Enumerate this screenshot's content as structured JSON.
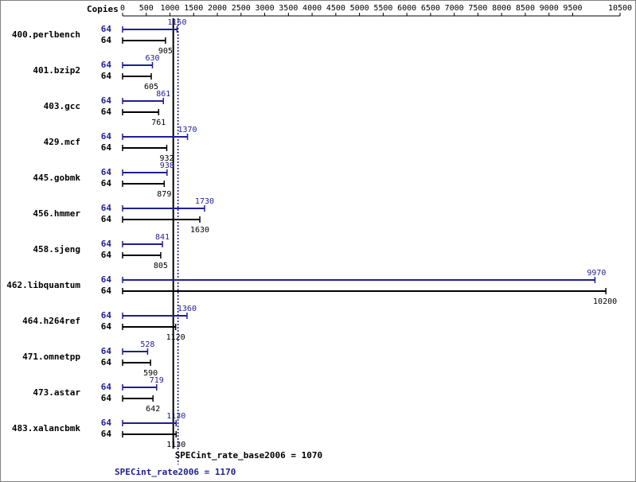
{
  "colors": {
    "peak": "#1e1e96",
    "base": "#000000",
    "text": "#000000"
  },
  "chart_data": {
    "type": "bar",
    "orientation": "horizontal",
    "copies_label": "Copies",
    "xlim": [
      0,
      10500
    ],
    "xticks": [
      0,
      500,
      1000,
      1500,
      2000,
      2500,
      3000,
      3500,
      4000,
      4500,
      5000,
      5500,
      6000,
      6500,
      7000,
      7500,
      8000,
      8500,
      9000,
      9500,
      10500
    ],
    "categories": [
      "400.perlbench",
      "401.bzip2",
      "403.gcc",
      "429.mcf",
      "445.gobmk",
      "456.hmmer",
      "458.sjeng",
      "462.libquantum",
      "464.h264ref",
      "471.omnetpp",
      "473.astar",
      "483.xalancbmk"
    ],
    "series": [
      {
        "key": "peak",
        "copies": [
          "64",
          "64",
          "64",
          "64",
          "64",
          "64",
          "64",
          "64",
          "64",
          "64",
          "64",
          "64"
        ],
        "values": [
          1150,
          630,
          861,
          1370,
          938,
          1730,
          841,
          9970,
          1360,
          528,
          719,
          1130
        ]
      },
      {
        "key": "base",
        "copies": [
          "64",
          "64",
          "64",
          "64",
          "64",
          "64",
          "64",
          "64",
          "64",
          "64",
          "64",
          "64"
        ],
        "values": [
          905,
          605,
          761,
          932,
          879,
          1630,
          805,
          10200,
          1120,
          590,
          642,
          1130
        ]
      }
    ],
    "reference_lines": [
      {
        "key": "base",
        "value": 1070,
        "label": "SPECint_rate_base2006 = 1070"
      },
      {
        "key": "peak",
        "value": 1170,
        "label": "SPECint_rate2006 = 1170"
      }
    ]
  }
}
